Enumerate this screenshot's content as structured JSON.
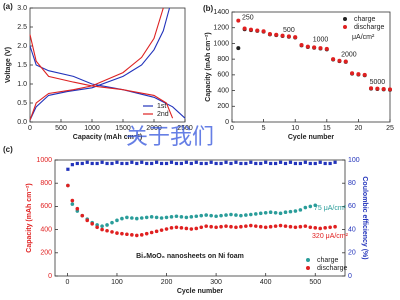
{
  "watermark": "关于我们",
  "chart_data": [
    {
      "type": "line",
      "label": "(a)",
      "xlabel": "Capacity (mAh cm⁻²)",
      "ylabel": "Voltage (V)",
      "xlim": [
        0,
        2500
      ],
      "xticks": [
        0,
        500,
        1000,
        1500,
        2000,
        2500
      ],
      "ylim": [
        0,
        3
      ],
      "yticks": [
        {
          "value": 0,
          "label": "0.0"
        },
        0.5,
        {
          "value": 1,
          "label": "1.0"
        },
        1.5,
        {
          "value": 2,
          "label": "2.0"
        },
        2.5,
        {
          "value": 3,
          "label": "3.0"
        }
      ],
      "legend": "lower right",
      "series": [
        {
          "name": "1st",
          "color": "#2233bb",
          "x": [
            0,
            100,
            300,
            700,
            1000,
            1500,
            2000,
            2300,
            2500,
            null,
            0,
            100,
            300,
            600,
            1000,
            1500,
            1800,
            2000,
            2150,
            2250
          ],
          "values": [
            2.0,
            1.5,
            1.35,
            1.2,
            1.0,
            0.85,
            0.65,
            0.4,
            0.1,
            null,
            0.05,
            0.4,
            0.7,
            0.8,
            0.9,
            1.2,
            1.5,
            1.9,
            2.4,
            3.0
          ]
        },
        {
          "name": "2nd",
          "color": "#dd2222",
          "x": [
            0,
            100,
            300,
            700,
            1000,
            1500,
            2000,
            2200,
            2300,
            null,
            0,
            100,
            300,
            700,
            1000,
            1500,
            1800,
            2000,
            2150
          ],
          "values": [
            2.3,
            1.6,
            1.2,
            1.05,
            0.95,
            0.85,
            0.7,
            0.5,
            0.1,
            null,
            0.05,
            0.5,
            0.75,
            0.85,
            0.95,
            1.3,
            1.7,
            2.2,
            3.0
          ]
        }
      ]
    },
    {
      "type": "scatter",
      "label": "(b)",
      "xlabel": "Cycle number",
      "ylabel": "Capacity (mAh cm⁻²)",
      "xlim": [
        0,
        25
      ],
      "xticks": [
        0,
        5,
        10,
        15,
        20,
        25
      ],
      "ylim": [
        0,
        1400
      ],
      "yticks": [
        0,
        200,
        400,
        600,
        800,
        1000,
        1200,
        1400
      ],
      "legend": "upper right",
      "legend_note": "μA/cm²",
      "rate_labels": [
        "250",
        "500",
        "1000",
        "2000",
        "5000"
      ],
      "x": [
        1,
        2,
        3,
        4,
        5,
        6,
        7,
        8,
        9,
        10,
        11,
        12,
        13,
        14,
        15,
        16,
        17,
        18,
        19,
        20,
        21,
        22,
        23,
        24,
        25
      ],
      "series": [
        {
          "name": "charge",
          "color": "#222222",
          "values": [
            940,
            1180,
            1170,
            1160,
            1150,
            1115,
            1105,
            1095,
            1085,
            1075,
            975,
            955,
            945,
            935,
            925,
            795,
            775,
            765,
            615,
            605,
            595,
            425,
            420,
            415,
            410
          ]
        },
        {
          "name": "discharge",
          "color": "#e02020",
          "values": [
            1290,
            1190,
            1175,
            1165,
            1155,
            1120,
            1110,
            1100,
            1090,
            1080,
            980,
            960,
            950,
            940,
            930,
            800,
            780,
            770,
            620,
            610,
            600,
            430,
            425,
            420,
            415
          ]
        }
      ]
    },
    {
      "type": "scatter",
      "label": "(c)",
      "xlabel": "Cycle number",
      "ylabel": "Capacity (mAh cm⁻²)",
      "y2label": "Coulombic efficiency (%)",
      "xlim": [
        -25,
        560
      ],
      "xticks": [
        0,
        100,
        200,
        300,
        400,
        500
      ],
      "ylim": [
        0,
        1000
      ],
      "yticks": [
        0,
        200,
        400,
        600,
        800,
        1000
      ],
      "y2lim": [
        0,
        100
      ],
      "y2ticks": [
        0,
        20,
        40,
        60,
        80,
        100
      ],
      "legend": "lower right",
      "annotations": [
        "75 μA/cm²",
        "320 μA/cm²",
        "Bi₂MoO₆ nanosheets on Ni foam"
      ],
      "series": [
        {
          "name": "charge",
          "color": "#2a9d9a",
          "x": [
            1,
            10,
            20,
            30,
            40,
            50,
            60,
            70,
            80,
            90,
            100,
            110,
            120,
            130,
            140,
            150,
            160,
            170,
            180,
            190,
            200,
            210,
            220,
            230,
            240,
            250,
            260,
            270,
            280,
            290,
            300,
            310,
            320,
            330,
            340,
            350,
            360,
            370,
            380,
            390,
            400,
            410,
            420,
            430,
            440,
            450,
            460,
            470,
            480,
            490,
            500
          ],
          "values": [
            780,
            620,
            560,
            520,
            490,
            460,
            440,
            430,
            440,
            460,
            480,
            495,
            505,
            500,
            495,
            500,
            505,
            510,
            505,
            500,
            505,
            510,
            515,
            510,
            505,
            510,
            515,
            520,
            525,
            520,
            515,
            520,
            525,
            530,
            525,
            520,
            525,
            530,
            535,
            540,
            545,
            550,
            545,
            540,
            550,
            555,
            560,
            570,
            590,
            600,
            610
          ]
        },
        {
          "name": "discharge",
          "color": "#e02020",
          "x": [
            1,
            10,
            20,
            30,
            40,
            50,
            60,
            70,
            80,
            90,
            100,
            110,
            120,
            130,
            140,
            150,
            160,
            170,
            180,
            190,
            200,
            210,
            220,
            230,
            240,
            250,
            260,
            270,
            280,
            290,
            300,
            310,
            320,
            330,
            340,
            350,
            360,
            370,
            380,
            390,
            400,
            410,
            420,
            430,
            440,
            450,
            460,
            470,
            480,
            490,
            500,
            510,
            520,
            530,
            540
          ],
          "values": [
            780,
            650,
            580,
            520,
            480,
            450,
            420,
            400,
            390,
            380,
            370,
            365,
            360,
            355,
            350,
            355,
            365,
            375,
            385,
            395,
            405,
            415,
            420,
            415,
            410,
            405,
            410,
            420,
            430,
            425,
            420,
            425,
            430,
            425,
            420,
            425,
            430,
            435,
            430,
            425,
            420,
            425,
            430,
            435,
            430,
            425,
            420,
            425,
            430,
            420,
            415,
            410,
            415,
            420,
            425
          ]
        },
        {
          "color": "#2233bb",
          "axis": "y2",
          "x": [
            1,
            10,
            20,
            30,
            40,
            50,
            60,
            70,
            80,
            90,
            100,
            110,
            120,
            130,
            140,
            150,
            160,
            170,
            180,
            190,
            200,
            210,
            220,
            230,
            240,
            250,
            260,
            270,
            280,
            290,
            300,
            310,
            320,
            330,
            340,
            350,
            360,
            370,
            380,
            390,
            400,
            410,
            420,
            430,
            440,
            450,
            460,
            470,
            480,
            490,
            500,
            510,
            520,
            530,
            540
          ],
          "values": [
            92,
            96,
            97,
            97,
            98,
            97,
            97,
            98,
            97,
            97,
            98,
            97,
            97,
            98,
            97,
            98,
            97,
            97,
            98,
            97,
            97,
            98,
            97,
            97,
            98,
            97,
            98,
            97,
            97,
            98,
            97,
            97,
            98,
            97,
            98,
            97,
            97,
            98,
            97,
            97,
            98,
            97,
            97,
            98,
            97,
            98,
            97,
            97,
            98,
            97,
            97,
            98,
            97,
            97,
            98
          ]
        }
      ]
    }
  ]
}
